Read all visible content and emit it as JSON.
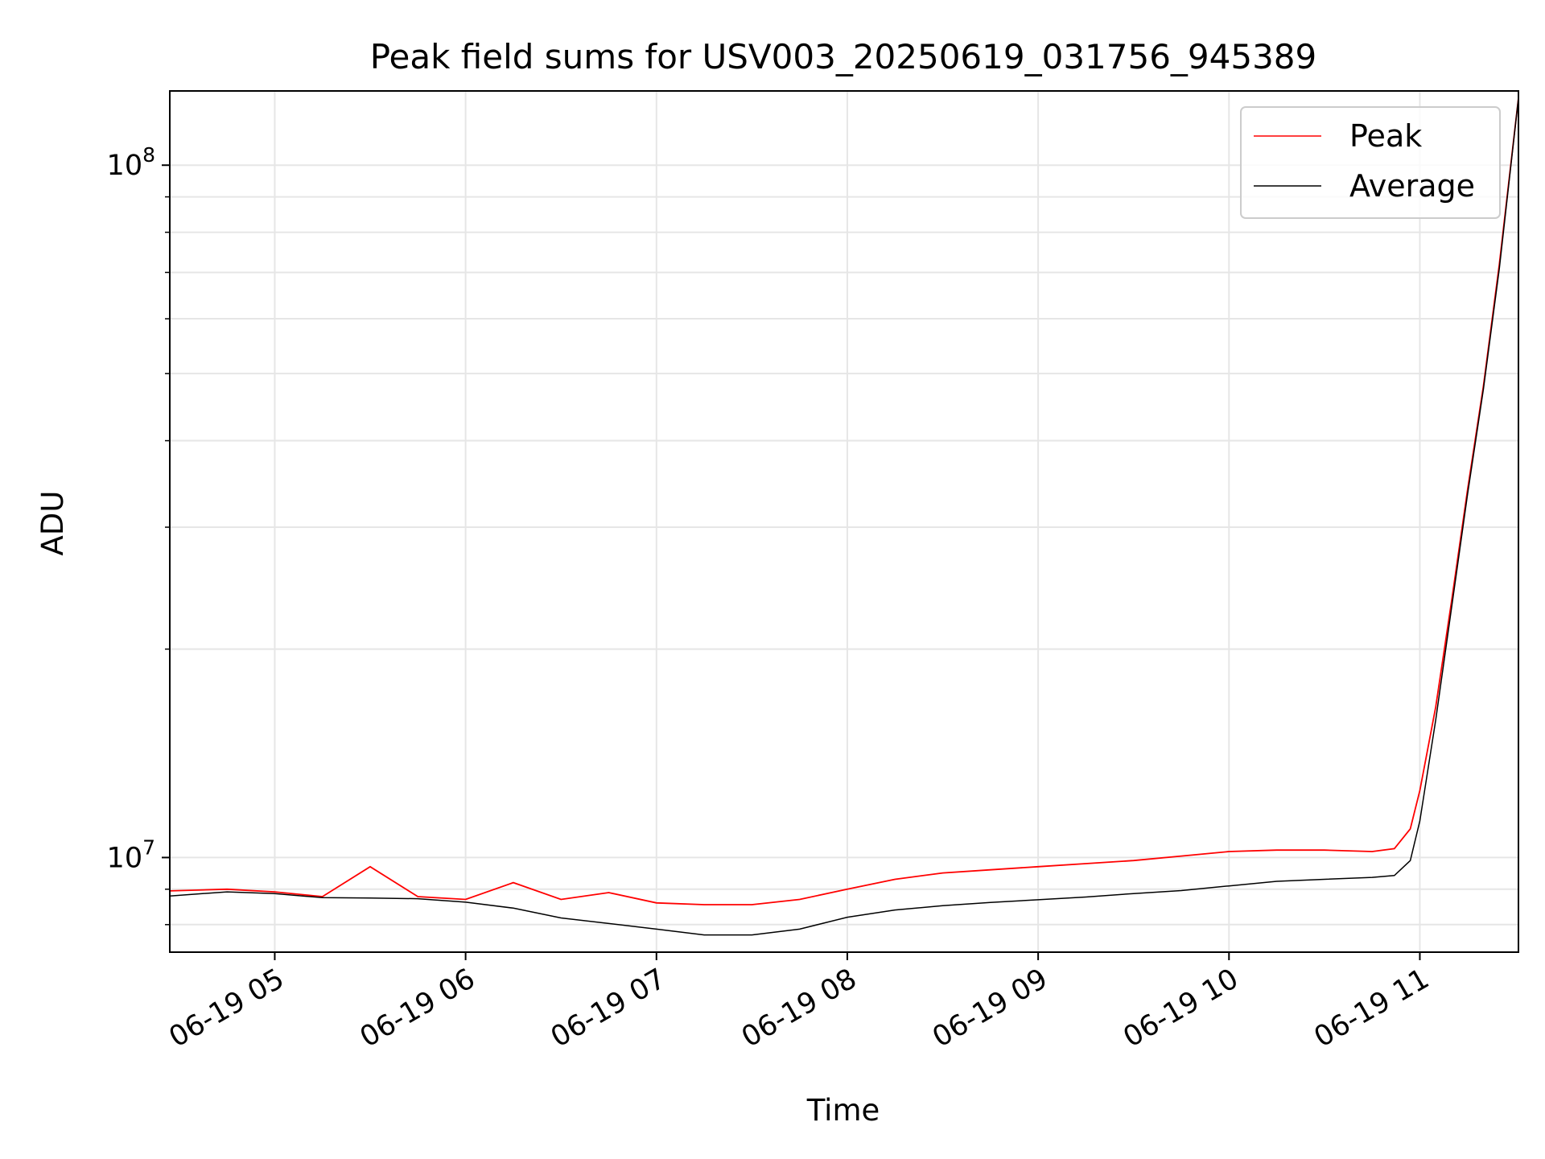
{
  "chart_data": {
    "type": "line",
    "title": "Peak field sums for USV003_20250619_031756_945389",
    "xlabel": "Time",
    "ylabel": "ADU",
    "yscale": "log",
    "grid": true,
    "legend_position": "top-right",
    "xlim": [
      "2025-06-19 04:27",
      "2025-06-19 11:31"
    ],
    "ylim": [
      7300000,
      128000000
    ],
    "x_ticks": [
      {
        "value": "2025-06-19 05:00",
        "label": "06-19 05"
      },
      {
        "value": "2025-06-19 06:00",
        "label": "06-19 06"
      },
      {
        "value": "2025-06-19 07:00",
        "label": "06-19 07"
      },
      {
        "value": "2025-06-19 08:00",
        "label": "06-19 08"
      },
      {
        "value": "2025-06-19 09:00",
        "label": "06-19 09"
      },
      {
        "value": "2025-06-19 10:00",
        "label": "06-19 10"
      },
      {
        "value": "2025-06-19 11:00",
        "label": "06-19 11"
      }
    ],
    "y_ticks": [
      {
        "value": 10000000,
        "base": "10",
        "exp": "7"
      },
      {
        "value": 100000000,
        "base": "10",
        "exp": "8"
      }
    ],
    "x": [
      "2025-06-19 04:27",
      "2025-06-19 04:45",
      "2025-06-19 05:00",
      "2025-06-19 05:15",
      "2025-06-19 05:30",
      "2025-06-19 05:45",
      "2025-06-19 06:00",
      "2025-06-19 06:15",
      "2025-06-19 06:30",
      "2025-06-19 06:45",
      "2025-06-19 07:00",
      "2025-06-19 07:15",
      "2025-06-19 07:30",
      "2025-06-19 07:45",
      "2025-06-19 08:00",
      "2025-06-19 08:15",
      "2025-06-19 08:30",
      "2025-06-19 08:45",
      "2025-06-19 09:00",
      "2025-06-19 09:15",
      "2025-06-19 09:30",
      "2025-06-19 09:45",
      "2025-06-19 10:00",
      "2025-06-19 10:15",
      "2025-06-19 10:30",
      "2025-06-19 10:45",
      "2025-06-19 10:52",
      "2025-06-19 10:57",
      "2025-06-19 11:00",
      "2025-06-19 11:05",
      "2025-06-19 11:10",
      "2025-06-19 11:15",
      "2025-06-19 11:20",
      "2025-06-19 11:25",
      "2025-06-19 11:31"
    ],
    "series": [
      {
        "name": "Peak",
        "color": "#ff0000",
        "values": [
          8950000,
          9000000,
          8920000,
          8780000,
          9700000,
          8780000,
          8700000,
          9200000,
          8700000,
          8900000,
          8600000,
          8550000,
          8550000,
          8700000,
          9000000,
          9300000,
          9500000,
          9600000,
          9700000,
          9800000,
          9900000,
          10050000,
          10200000,
          10250000,
          10250000,
          10200000,
          10300000,
          11000000,
          12500000,
          16500000,
          23500000,
          34000000,
          48000000,
          72000000,
          125000000
        ]
      },
      {
        "name": "Average",
        "color": "#000000",
        "values": [
          8800000,
          8920000,
          8870000,
          8750000,
          8740000,
          8720000,
          8620000,
          8450000,
          8180000,
          8030000,
          7880000,
          7730000,
          7730000,
          7880000,
          8200000,
          8400000,
          8520000,
          8610000,
          8690000,
          8770000,
          8870000,
          8960000,
          9100000,
          9240000,
          9300000,
          9360000,
          9420000,
          9900000,
          11300000,
          15800000,
          23000000,
          33500000,
          47500000,
          71000000,
          125000000
        ]
      }
    ]
  }
}
